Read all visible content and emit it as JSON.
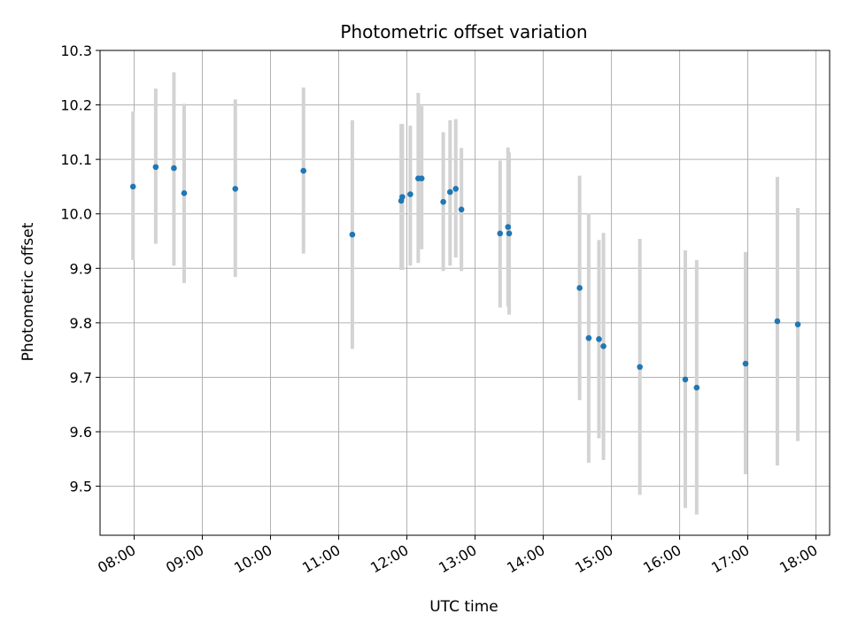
{
  "chart_data": {
    "type": "scatter",
    "title": "Photometric offset variation",
    "xlabel": "UTC time",
    "ylabel": "Photometric offset",
    "x_tick_labels": [
      "08:00",
      "09:00",
      "10:00",
      "11:00",
      "12:00",
      "13:00",
      "14:00",
      "15:00",
      "16:00",
      "17:00",
      "18:00"
    ],
    "y_tick_labels": [
      "9.5",
      "9.6",
      "9.7",
      "9.8",
      "9.9",
      "10.0",
      "10.1",
      "10.2",
      "10.3"
    ],
    "xlim": [
      "07:30",
      "18:12"
    ],
    "ylim": [
      9.41,
      10.3
    ],
    "grid": true,
    "colors": {
      "point": "#1f77b4",
      "error_bar": "#d3d3d3",
      "grid": "#b0b0b0"
    },
    "series": [
      {
        "points": [
          {
            "x": "07:59",
            "y": 10.05,
            "err_low": 9.915,
            "err_high": 10.188
          },
          {
            "x": "08:19",
            "y": 10.086,
            "err_low": 9.945,
            "err_high": 10.23
          },
          {
            "x": "08:35",
            "y": 10.084,
            "err_low": 9.905,
            "err_high": 10.26
          },
          {
            "x": "08:44",
            "y": 10.038,
            "err_low": 9.873,
            "err_high": 10.202
          },
          {
            "x": "09:29",
            "y": 10.046,
            "err_low": 9.884,
            "err_high": 10.21
          },
          {
            "x": "10:29",
            "y": 10.079,
            "err_low": 9.927,
            "err_high": 10.232
          },
          {
            "x": "11:12",
            "y": 9.962,
            "err_low": 9.752,
            "err_high": 10.172
          },
          {
            "x": "11:55",
            "y": 10.024,
            "err_low": 9.897,
            "err_high": 10.165
          },
          {
            "x": "11:56",
            "y": 10.031,
            "err_low": 9.897,
            "err_high": 10.165
          },
          {
            "x": "12:03",
            "y": 10.036,
            "err_low": 9.905,
            "err_high": 10.162
          },
          {
            "x": "12:10",
            "y": 10.065,
            "err_low": 9.91,
            "err_high": 10.222
          },
          {
            "x": "12:13",
            "y": 10.065,
            "err_low": 9.935,
            "err_high": 10.198
          },
          {
            "x": "12:32",
            "y": 10.022,
            "err_low": 9.895,
            "err_high": 10.15
          },
          {
            "x": "12:38",
            "y": 10.04,
            "err_low": 9.905,
            "err_high": 10.172
          },
          {
            "x": "12:43",
            "y": 10.046,
            "err_low": 9.92,
            "err_high": 10.174
          },
          {
            "x": "12:48",
            "y": 10.008,
            "err_low": 9.895,
            "err_high": 10.121
          },
          {
            "x": "13:22",
            "y": 9.964,
            "err_low": 9.828,
            "err_high": 10.098
          },
          {
            "x": "13:29",
            "y": 9.976,
            "err_low": 9.83,
            "err_high": 10.122
          },
          {
            "x": "13:30",
            "y": 9.964,
            "err_low": 9.815,
            "err_high": 10.113
          },
          {
            "x": "14:32",
            "y": 9.864,
            "err_low": 9.658,
            "err_high": 10.07
          },
          {
            "x": "14:40",
            "y": 9.772,
            "err_low": 9.543,
            "err_high": 10.001
          },
          {
            "x": "14:49",
            "y": 9.77,
            "err_low": 9.588,
            "err_high": 9.952
          },
          {
            "x": "14:53",
            "y": 9.757,
            "err_low": 9.548,
            "err_high": 9.965
          },
          {
            "x": "15:25",
            "y": 9.719,
            "err_low": 9.484,
            "err_high": 9.954
          },
          {
            "x": "16:05",
            "y": 9.696,
            "err_low": 9.46,
            "err_high": 9.933
          },
          {
            "x": "16:15",
            "y": 9.681,
            "err_low": 9.448,
            "err_high": 9.915
          },
          {
            "x": "16:58",
            "y": 9.725,
            "err_low": 9.522,
            "err_high": 9.93
          },
          {
            "x": "17:26",
            "y": 9.803,
            "err_low": 9.538,
            "err_high": 10.068
          },
          {
            "x": "17:44",
            "y": 9.797,
            "err_low": 9.583,
            "err_high": 10.011
          }
        ]
      }
    ]
  }
}
